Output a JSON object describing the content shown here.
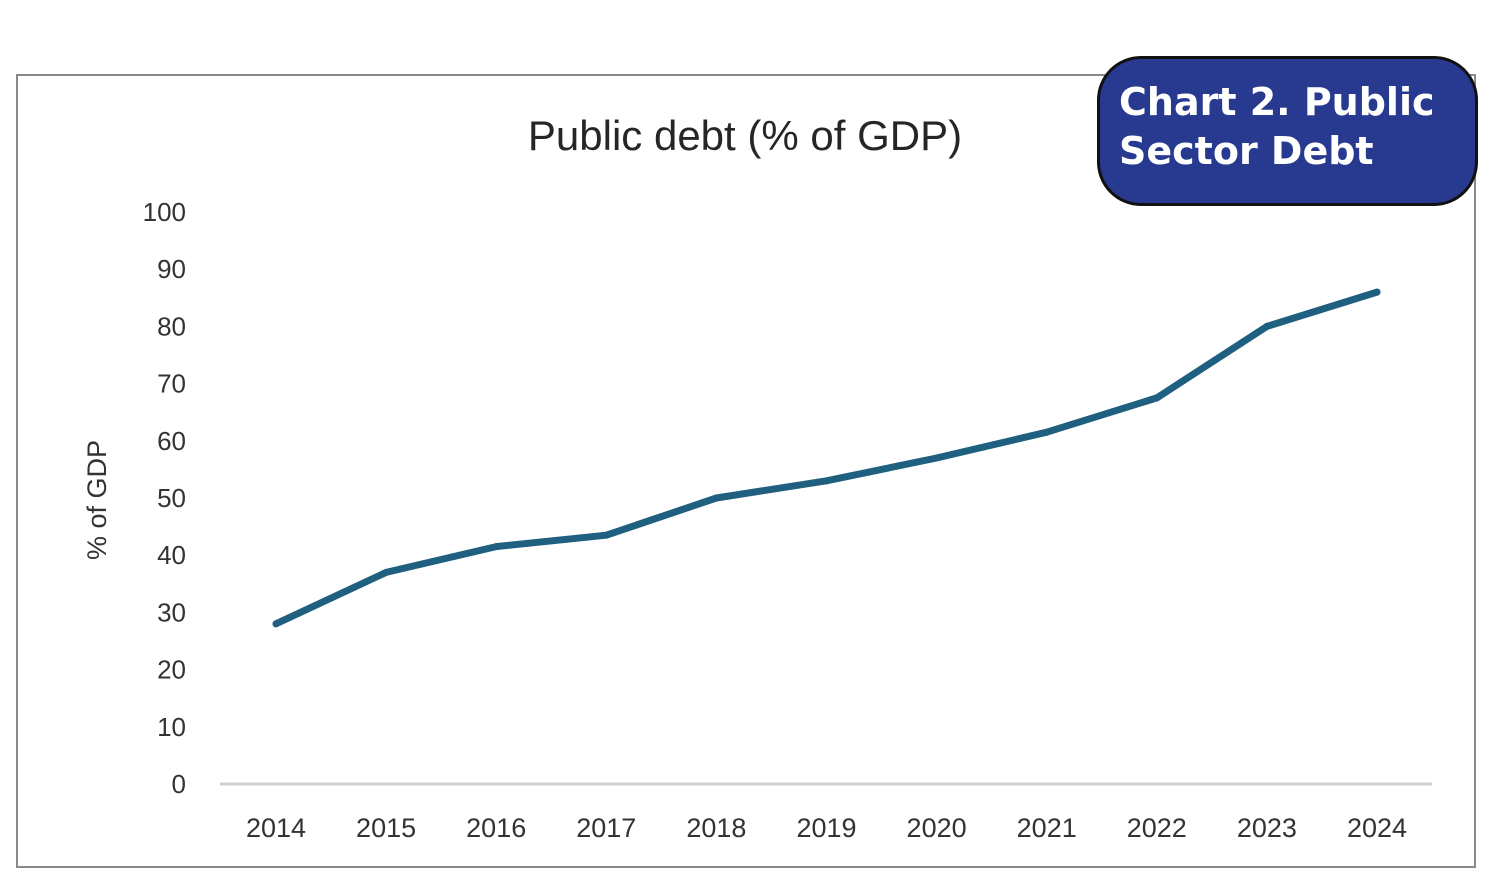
{
  "badge": {
    "line1": "Chart 2. Public",
    "line2": "Sector Debt"
  },
  "chart_data": {
    "type": "line",
    "title": "Public debt  (% of GDP)",
    "xlabel": "",
    "ylabel": "% of GDP",
    "categories": [
      "2014",
      "2015",
      "2016",
      "2017",
      "2018",
      "2019",
      "2020",
      "2021",
      "2022",
      "2023",
      "2024"
    ],
    "y_ticks": [
      "0",
      "10",
      "20",
      "30",
      "40",
      "50",
      "60",
      "70",
      "80",
      "90",
      "100"
    ],
    "ylim": [
      0,
      100
    ],
    "grid": false,
    "series": [
      {
        "values": [
          28,
          37,
          41.5,
          43.5,
          50,
          53,
          57,
          61.5,
          67.5,
          80,
          86
        ],
        "color": "#1f5f80"
      }
    ]
  }
}
